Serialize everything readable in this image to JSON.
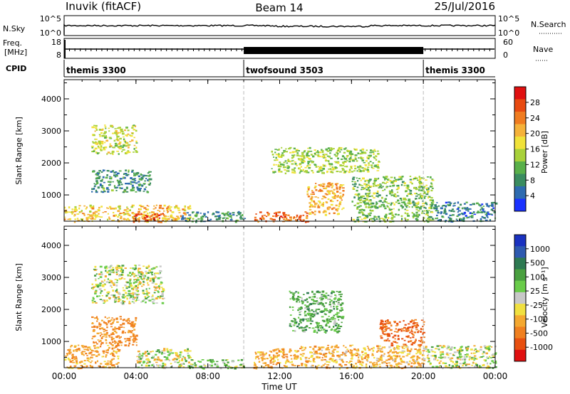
{
  "header": {
    "station": "Inuvik (fitACF)",
    "beam": "Beam 14",
    "date": "25/Jul/2016"
  },
  "strips": {
    "nsky_label": "N.Sky",
    "nsky_ticks": [
      "10^5",
      "10^0"
    ],
    "nsearch_label": "N.Search",
    "nsearch_ticks": [
      "10^5",
      "10^0"
    ],
    "freq_label_line1": "Freq.",
    "freq_label_line2": "[MHz]",
    "freq_ticks": [
      "18",
      "8"
    ],
    "nave_label": "Nave",
    "nave_ticks": [
      "60",
      "0"
    ],
    "cpid_label": "CPID",
    "cpid_segments": [
      {
        "label": "themis 3300",
        "start_h": 0,
        "end_h": 10
      },
      {
        "label": "twofsound 3503",
        "start_h": 10,
        "end_h": 20
      },
      {
        "label": "themis 3300",
        "start_h": 20,
        "end_h": 24
      }
    ]
  },
  "axes": {
    "x_ticks": [
      "00:00",
      "04:00",
      "08:00",
      "12:00",
      "16:00",
      "20:00",
      "00:00"
    ],
    "x_tick_hours": [
      0,
      4,
      8,
      12,
      16,
      20,
      24
    ],
    "xlabel": "Time UT",
    "ylabel": "Slant Range [km]",
    "y_ticks": [
      "1000",
      "2000",
      "3000",
      "4000"
    ],
    "y_tick_values": [
      1000,
      2000,
      3000,
      4000
    ],
    "ylim": [
      180,
      4600
    ],
    "xlim_hours": [
      0,
      24
    ]
  },
  "power_colorbar": {
    "label": "Power [dB]",
    "ticks": [
      "4",
      "8",
      "12",
      "16",
      "20",
      "24",
      "28"
    ],
    "colors": [
      "#1a32ff",
      "#2e6bb0",
      "#3a8c60",
      "#59b04a",
      "#a8d13a",
      "#f0e23a",
      "#f5b23a",
      "#f07c20",
      "#e84a10",
      "#e01010"
    ]
  },
  "velocity_colorbar": {
    "label": "Velocity [m s⁻¹]",
    "ticks": [
      "1000",
      "500",
      "100",
      "25",
      "-25",
      "-100",
      "-500",
      "-1000"
    ],
    "colors": [
      "#1a32c0",
      "#2e5ab0",
      "#2e7a52",
      "#4aa040",
      "#6acc4a",
      "#c8c8c8",
      "#f0e040",
      "#f4a830",
      "#f08020",
      "#e85010",
      "#e01010"
    ]
  },
  "chart_data": [
    {
      "type": "heatmap",
      "title": "Power",
      "xlabel": "Time UT",
      "ylabel": "Slant Range [km]",
      "x_unit": "hours UT",
      "xlim": [
        0,
        24
      ],
      "ylim": [
        180,
        4600
      ],
      "color_scale": "Power [dB]",
      "regions": [
        {
          "t": [
            0.0,
            7.0
          ],
          "r": [
            180,
            700
          ],
          "value": 20
        },
        {
          "t": [
            1.5,
            4.0
          ],
          "r": [
            2300,
            3200
          ],
          "value": 16
        },
        {
          "t": [
            1.5,
            4.8
          ],
          "r": [
            1100,
            1800
          ],
          "value": 8
        },
        {
          "t": [
            3.8,
            5.5
          ],
          "r": [
            180,
            450
          ],
          "value": 28
        },
        {
          "t": [
            6.5,
            10.0
          ],
          "r": [
            180,
            500
          ],
          "value": 8
        },
        {
          "t": [
            10.5,
            13.5
          ],
          "r": [
            180,
            500
          ],
          "value": 26
        },
        {
          "t": [
            11.5,
            17.5
          ],
          "r": [
            1700,
            2500
          ],
          "value": 14
        },
        {
          "t": [
            13.5,
            15.5
          ],
          "r": [
            400,
            1400
          ],
          "value": 22
        },
        {
          "t": [
            16.0,
            20.5
          ],
          "r": [
            180,
            1600
          ],
          "value": 12
        },
        {
          "t": [
            20.5,
            24.0
          ],
          "r": [
            180,
            800
          ],
          "value": 6
        }
      ]
    },
    {
      "type": "heatmap",
      "title": "Velocity",
      "xlabel": "Time UT",
      "ylabel": "Slant Range [km]",
      "x_unit": "hours UT",
      "xlim": [
        0,
        24
      ],
      "ylim": [
        180,
        4600
      ],
      "color_scale": "Velocity [m s⁻¹]",
      "regions": [
        {
          "t": [
            0.0,
            3.0
          ],
          "r": [
            180,
            900
          ],
          "value": -200
        },
        {
          "t": [
            1.5,
            5.5
          ],
          "r": [
            2200,
            3400
          ],
          "value": 0
        },
        {
          "t": [
            1.5,
            4.0
          ],
          "r": [
            900,
            1800
          ],
          "value": -300
        },
        {
          "t": [
            4.0,
            7.0
          ],
          "r": [
            180,
            800
          ],
          "value": 0
        },
        {
          "t": [
            7.0,
            10.0
          ],
          "r": [
            180,
            450
          ],
          "value": 60
        },
        {
          "t": [
            12.5,
            15.5
          ],
          "r": [
            1300,
            2600
          ],
          "value": 150
        },
        {
          "t": [
            10.5,
            13.0
          ],
          "r": [
            180,
            800
          ],
          "value": -200
        },
        {
          "t": [
            13.0,
            20.0
          ],
          "r": [
            180,
            900
          ],
          "value": -150
        },
        {
          "t": [
            17.5,
            20.0
          ],
          "r": [
            900,
            1700
          ],
          "value": -500
        },
        {
          "t": [
            20.0,
            24.0
          ],
          "r": [
            180,
            900
          ],
          "value": 0
        }
      ]
    }
  ]
}
